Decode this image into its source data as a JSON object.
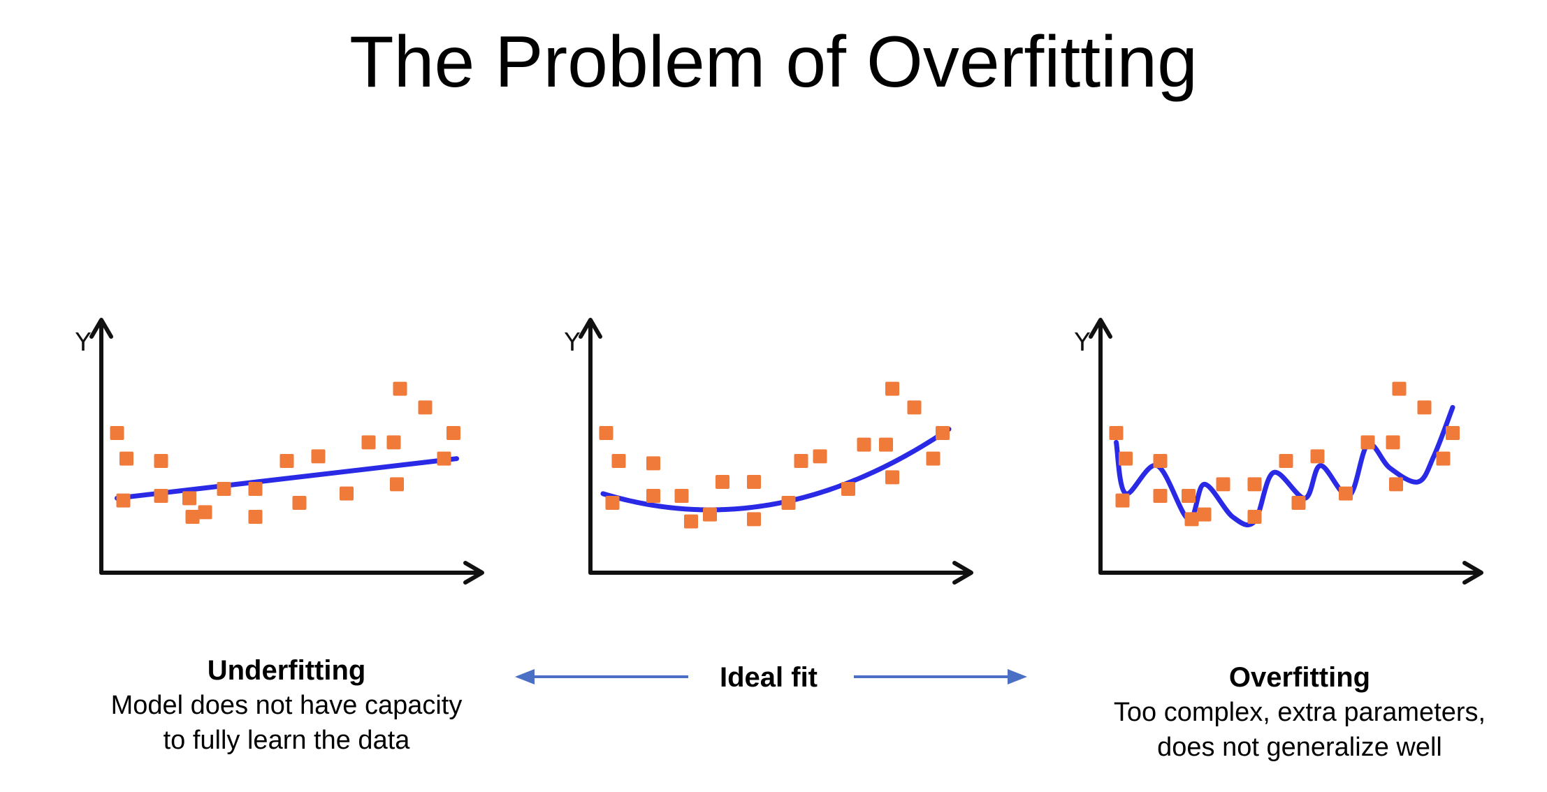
{
  "title": "The Problem of Overfitting",
  "colors": {
    "point": "#f07a3a",
    "fit_line": "#2a2ae6",
    "axis": "#111111",
    "arrow": "#4a6fc4"
  },
  "panels": [
    {
      "id": "underfitting",
      "y_axis_label": "Y",
      "caption_title": "Underfitting",
      "caption_lines": [
        "Model does not have capacity",
        "to fully learn the data"
      ],
      "fit": "linear"
    },
    {
      "id": "ideal",
      "y_axis_label": "Y",
      "caption_title": "Ideal fit",
      "caption_lines": [],
      "fit": "quadratic"
    },
    {
      "id": "overfitting",
      "y_axis_label": "Y",
      "caption_title": "Overfitting",
      "caption_lines": [
        "Too complex, extra parameters,",
        "does not generalize well"
      ],
      "fit": "wiggly"
    }
  ],
  "chart_data": [
    {
      "type": "scatter",
      "fit": "linear",
      "ylabel": "Y",
      "xlabel": "",
      "points": [
        [
          0.5,
          6.0
        ],
        [
          0.8,
          4.9
        ],
        [
          0.7,
          3.1
        ],
        [
          1.9,
          4.8
        ],
        [
          1.9,
          3.3
        ],
        [
          2.8,
          3.2
        ],
        [
          2.9,
          2.4
        ],
        [
          3.3,
          2.6
        ],
        [
          3.9,
          3.6
        ],
        [
          4.9,
          3.6
        ],
        [
          4.9,
          2.4
        ],
        [
          5.9,
          4.8
        ],
        [
          6.3,
          3.0
        ],
        [
          6.9,
          5.0
        ],
        [
          7.8,
          3.4
        ],
        [
          8.5,
          5.6
        ],
        [
          9.3,
          5.6
        ],
        [
          9.4,
          3.8
        ],
        [
          9.5,
          7.9
        ],
        [
          10.3,
          7.1
        ],
        [
          10.9,
          4.9
        ],
        [
          11.2,
          6.0
        ]
      ],
      "fit_line": [
        [
          0.5,
          3.2
        ],
        [
          11.3,
          4.9
        ]
      ]
    },
    {
      "type": "scatter",
      "fit": "quadratic",
      "ylabel": "Y",
      "xlabel": "",
      "points": [
        [
          0.5,
          6.0
        ],
        [
          0.7,
          3.0
        ],
        [
          0.9,
          4.8
        ],
        [
          2.0,
          4.7
        ],
        [
          2.0,
          3.3
        ],
        [
          2.9,
          3.3
        ],
        [
          3.2,
          2.2
        ],
        [
          3.8,
          2.5
        ],
        [
          4.2,
          3.9
        ],
        [
          5.2,
          3.9
        ],
        [
          5.2,
          2.3
        ],
        [
          6.3,
          3.0
        ],
        [
          6.7,
          4.8
        ],
        [
          7.3,
          5.0
        ],
        [
          8.2,
          3.6
        ],
        [
          8.7,
          5.5
        ],
        [
          9.4,
          5.5
        ],
        [
          9.6,
          4.1
        ],
        [
          9.6,
          7.9
        ],
        [
          10.3,
          7.1
        ],
        [
          10.9,
          4.9
        ],
        [
          11.2,
          6.0
        ]
      ],
      "fit_line": "quadratic"
    },
    {
      "type": "scatter",
      "fit": "wiggly",
      "ylabel": "Y",
      "xlabel": "",
      "points": [
        [
          0.5,
          6.0
        ],
        [
          0.8,
          4.9
        ],
        [
          0.7,
          3.1
        ],
        [
          1.9,
          4.8
        ],
        [
          1.9,
          3.3
        ],
        [
          2.8,
          3.3
        ],
        [
          2.9,
          2.3
        ],
        [
          3.3,
          2.5
        ],
        [
          3.9,
          3.8
        ],
        [
          4.9,
          3.8
        ],
        [
          4.9,
          2.4
        ],
        [
          5.9,
          4.8
        ],
        [
          6.3,
          3.0
        ],
        [
          6.9,
          5.0
        ],
        [
          7.8,
          3.4
        ],
        [
          8.5,
          5.6
        ],
        [
          9.3,
          5.6
        ],
        [
          9.4,
          3.8
        ],
        [
          9.5,
          7.9
        ],
        [
          10.3,
          7.1
        ],
        [
          10.9,
          4.9
        ],
        [
          11.2,
          6.0
        ]
      ],
      "fit_line": "interpolating"
    }
  ]
}
